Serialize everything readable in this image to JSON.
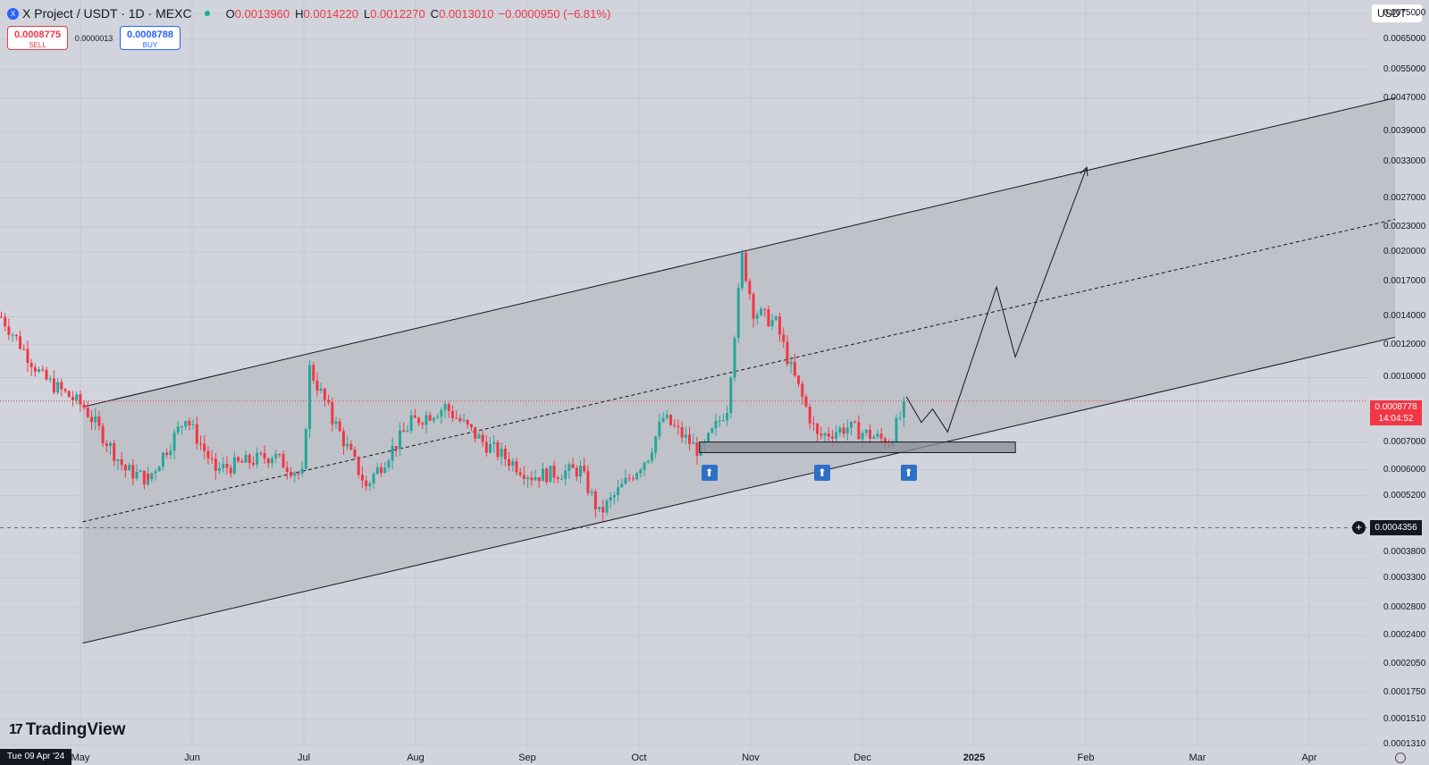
{
  "header": {
    "symbol": "X Project / USDT · 1D · MEXC",
    "ohlc": [
      {
        "k": "O",
        "v": "0.0013960"
      },
      {
        "k": "H",
        "v": "0.0014220"
      },
      {
        "k": "L",
        "v": "0.0012270"
      },
      {
        "k": "C",
        "v": "0.0013010"
      }
    ],
    "change": "−0.0000950 (−6.81%)",
    "status_color": "#26a69a",
    "logo_icon": "x-project-logo-icon"
  },
  "trade": {
    "sell_price": "0.0008775",
    "sell_label": "SELL",
    "spread": "0.0000013",
    "buy_price": "0.0008788",
    "buy_label": "BUY"
  },
  "currency": {
    "label": "USDT"
  },
  "price_axis": {
    "labels": [
      "0.0075000",
      "0.0065000",
      "0.0055000",
      "0.0047000",
      "0.0039000",
      "0.0033000",
      "0.0027000",
      "0.0023000",
      "0.0020000",
      "0.0017000",
      "0.0014000",
      "0.0012000",
      "0.0010000",
      "0.0007000",
      "0.0006000",
      "0.0005200",
      "0.0003800",
      "0.0003300",
      "0.0002800",
      "0.0002400",
      "0.0002050",
      "0.0001750",
      "0.0001510",
      "0.0001310"
    ],
    "current_price": "0.0008778",
    "countdown": "14:04:52",
    "crosshair_price": "0.0004356"
  },
  "time_axis": {
    "date_badge": "Tue 09 Apr '24",
    "labels": [
      "May",
      "Jun",
      "Jul",
      "Aug",
      "Sep",
      "Oct",
      "Nov",
      "Dec",
      "2025",
      "Feb",
      "Mar",
      "Apr"
    ]
  },
  "branding": {
    "name": "TradingView",
    "mark": "17"
  },
  "colors": {
    "up": "#26a69a",
    "down": "#f23645",
    "background": "#d1d4dc",
    "channel_fill": "#b9bcc3",
    "arrow_badge": "#2e6fc7"
  },
  "chart_data": {
    "type": "candlestick",
    "scale": "log",
    "timeframe": "1D",
    "ylim": [
      0.00013,
      0.0075
    ],
    "last_price": 0.0008778,
    "crosshair_price": 0.0004356,
    "close_path": [
      {
        "date": "2024-04-09",
        "close": 0.0014
      },
      {
        "date": "2024-04-20",
        "close": 0.001
      },
      {
        "date": "2024-05-01",
        "close": 0.00085
      },
      {
        "date": "2024-05-12",
        "close": 0.0006
      },
      {
        "date": "2024-05-18",
        "close": 0.00057
      },
      {
        "date": "2024-05-28",
        "close": 0.0008
      },
      {
        "date": "2024-06-05",
        "close": 0.0006
      },
      {
        "date": "2024-06-20",
        "close": 0.00065
      },
      {
        "date": "2024-06-28",
        "close": 0.00058
      },
      {
        "date": "2024-06-30",
        "close": 0.00105
      },
      {
        "date": "2024-07-06",
        "close": 0.0008
      },
      {
        "date": "2024-07-15",
        "close": 0.00055
      },
      {
        "date": "2024-07-27",
        "close": 0.00078
      },
      {
        "date": "2024-08-05",
        "close": 0.00085
      },
      {
        "date": "2024-08-15",
        "close": 0.0007
      },
      {
        "date": "2024-08-28",
        "close": 0.00058
      },
      {
        "date": "2024-09-10",
        "close": 0.0006
      },
      {
        "date": "2024-09-15",
        "close": 0.00047
      },
      {
        "date": "2024-09-28",
        "close": 0.00065
      },
      {
        "date": "2024-10-02",
        "close": 0.0008
      },
      {
        "date": "2024-10-12",
        "close": 0.00066
      },
      {
        "date": "2024-10-19",
        "close": 0.00085
      },
      {
        "date": "2024-10-23",
        "close": 0.00195
      },
      {
        "date": "2024-10-26",
        "close": 0.00145
      },
      {
        "date": "2024-11-01",
        "close": 0.00135
      },
      {
        "date": "2024-11-05",
        "close": 0.00105
      },
      {
        "date": "2024-11-12",
        "close": 0.00072
      },
      {
        "date": "2024-11-20",
        "close": 0.00076
      },
      {
        "date": "2024-12-01",
        "close": 0.0007
      },
      {
        "date": "2024-12-06",
        "close": 0.00088
      }
    ],
    "drawings": [
      {
        "type": "parallel_channel",
        "upper": [
          [
            "2024-05-01",
            0.00085
          ],
          [
            "2025-04-15",
            0.0047
          ]
        ],
        "lower": [
          [
            "2024-05-01",
            0.00023
          ],
          [
            "2025-04-15",
            0.00125
          ]
        ],
        "middle": [
          [
            "2024-05-01",
            0.00045
          ],
          [
            "2025-04-15",
            0.0024
          ]
        ]
      },
      {
        "type": "rectangle",
        "from": "2024-10-12",
        "to": "2025-01-04",
        "top": 0.0007,
        "bottom": 0.00066
      },
      {
        "type": "path",
        "points": [
          [
            "2024-12-06",
            0.0009
          ],
          [
            "2024-12-10",
            0.00078
          ],
          [
            "2024-12-13",
            0.00084
          ],
          [
            "2024-12-17",
            0.00074
          ],
          [
            "2024-12-30",
            0.00165
          ],
          [
            "2025-01-04",
            0.00112
          ],
          [
            "2025-01-23",
            0.0032
          ]
        ]
      },
      {
        "type": "arrow_up_markers",
        "dates": [
          "2024-10-12",
          "2024-11-11",
          "2024-12-04"
        ]
      }
    ]
  }
}
